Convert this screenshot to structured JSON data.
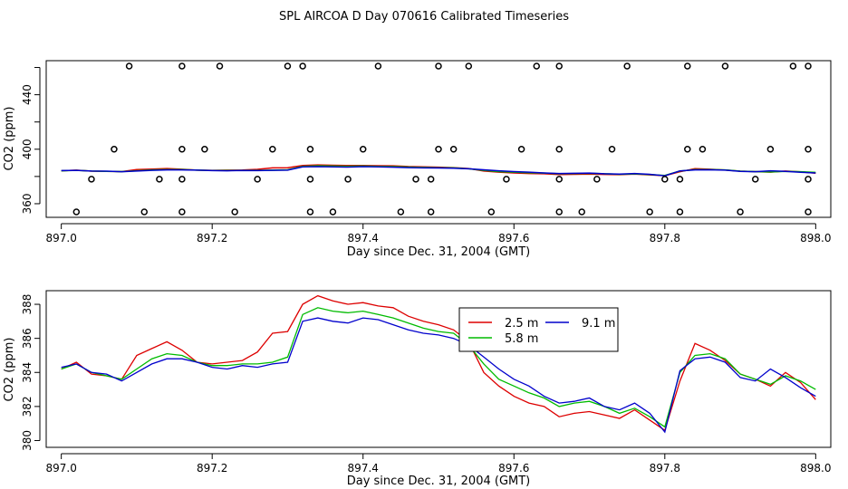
{
  "figure_title": "SPL AIRCOA D  Day 070616  Calibrated Timeseries",
  "chart_data": [
    {
      "type": "scatter",
      "panel": "top",
      "xlabel": "Day since Dec. 31, 2004 (GMT)",
      "ylabel": "CO2 (ppm)",
      "xlim": [
        896.98,
        898.02
      ],
      "ylim": [
        350,
        465
      ],
      "xticks": [
        897.0,
        897.2,
        897.4,
        897.6,
        897.8,
        898.0
      ],
      "xtick_labels": [
        "897.0",
        "897.2",
        "897.4",
        "897.6",
        "897.8",
        "898.0"
      ],
      "yticks": [
        360,
        380,
        400,
        420,
        440,
        460
      ],
      "ytick_labels": [
        "360",
        "",
        "400",
        "",
        "440",
        ""
      ],
      "points": {
        "x": [
          897.09,
          897.16,
          897.21,
          897.3,
          897.32,
          897.42,
          897.5,
          897.54,
          897.63,
          897.66,
          897.75,
          897.83,
          897.88,
          897.97,
          897.99,
          897.07,
          897.16,
          897.19,
          897.28,
          897.33,
          897.4,
          897.5,
          897.52,
          897.61,
          897.66,
          897.73,
          897.83,
          897.85,
          897.94,
          897.99,
          897.04,
          897.13,
          897.16,
          897.26,
          897.33,
          897.38,
          897.47,
          897.49,
          897.59,
          897.66,
          897.71,
          897.8,
          897.82,
          897.92,
          897.99,
          897.02,
          897.11,
          897.16,
          897.23,
          897.33,
          897.36,
          897.45,
          897.49,
          897.57,
          897.66,
          897.69,
          897.78,
          897.82,
          897.9,
          897.99
        ],
        "y": [
          461,
          461,
          461,
          461,
          461,
          461,
          461,
          461,
          461,
          461,
          461,
          461,
          461,
          461,
          461,
          400,
          400,
          400,
          400,
          400,
          400,
          400,
          400,
          400,
          400,
          400,
          400,
          400,
          400,
          400,
          378,
          378,
          378,
          378,
          378,
          378,
          378,
          378,
          378,
          378,
          378,
          378,
          378,
          378,
          378,
          354,
          354,
          354,
          354,
          354,
          354,
          354,
          354,
          354,
          354,
          354,
          354,
          354,
          354,
          354
        ]
      },
      "series": [
        {
          "name": "2.5 m",
          "color": "#dd0000"
        },
        {
          "name": "5.8 m",
          "color": "#00bb00"
        },
        {
          "name": "9.1 m",
          "color": "#0000cc"
        }
      ]
    },
    {
      "type": "line",
      "panel": "bottom",
      "xlabel": "Day since Dec. 31, 2004 (GMT)",
      "ylabel": "CO2 (ppm)",
      "xlim": [
        896.98,
        898.02
      ],
      "ylim": [
        379.6,
        388.8
      ],
      "xticks": [
        897.0,
        897.2,
        897.4,
        897.6,
        897.8,
        898.0
      ],
      "xtick_labels": [
        "897.0",
        "897.2",
        "897.4",
        "897.6",
        "897.8",
        "898.0"
      ],
      "yticks": [
        380,
        382,
        384,
        386,
        388
      ],
      "ytick_labels": [
        "380",
        "382",
        "384",
        "386",
        "388"
      ],
      "legend_position": "upper-center",
      "x": [
        897.0,
        897.02,
        897.04,
        897.06,
        897.08,
        897.1,
        897.12,
        897.14,
        897.16,
        897.18,
        897.2,
        897.22,
        897.24,
        897.26,
        897.28,
        897.3,
        897.32,
        897.34,
        897.36,
        897.38,
        897.4,
        897.42,
        897.44,
        897.46,
        897.48,
        897.5,
        897.52,
        897.54,
        897.56,
        897.58,
        897.6,
        897.62,
        897.64,
        897.66,
        897.68,
        897.7,
        897.72,
        897.74,
        897.76,
        897.78,
        897.8,
        897.82,
        897.84,
        897.86,
        897.88,
        897.9,
        897.92,
        897.94,
        897.96,
        897.98,
        898.0
      ],
      "series": [
        {
          "name": "2.5 m",
          "color": "#dd0000",
          "values": [
            384.2,
            384.6,
            383.9,
            383.8,
            383.6,
            385.0,
            385.4,
            385.8,
            385.3,
            384.6,
            384.5,
            384.6,
            384.7,
            385.2,
            386.3,
            386.4,
            388.0,
            388.5,
            388.2,
            388.0,
            388.1,
            387.9,
            387.8,
            387.3,
            387.0,
            386.8,
            386.5,
            385.8,
            384.0,
            383.2,
            382.6,
            382.2,
            382.0,
            381.4,
            381.6,
            381.7,
            381.5,
            381.3,
            381.8,
            381.2,
            380.6,
            383.5,
            385.7,
            385.3,
            384.7,
            383.9,
            383.6,
            383.2,
            384.0,
            383.4,
            382.4
          ]
        },
        {
          "name": "5.8 m",
          "color": "#00bb00",
          "values": [
            384.2,
            384.5,
            384.0,
            383.8,
            383.6,
            384.2,
            384.8,
            385.1,
            385.0,
            384.6,
            384.4,
            384.4,
            384.5,
            384.5,
            384.6,
            384.9,
            387.4,
            387.8,
            387.6,
            387.5,
            387.6,
            387.4,
            387.2,
            386.9,
            386.6,
            386.4,
            386.3,
            385.6,
            384.5,
            383.6,
            383.2,
            382.8,
            382.5,
            382.0,
            382.2,
            382.3,
            382.0,
            381.6,
            381.9,
            381.4,
            380.8,
            384.0,
            385.0,
            385.1,
            384.8,
            383.9,
            383.6,
            383.3,
            383.8,
            383.5,
            383.0
          ]
        },
        {
          "name": "9.1 m",
          "color": "#0000cc",
          "values": [
            384.3,
            384.5,
            384.0,
            383.9,
            383.5,
            384.0,
            384.5,
            384.8,
            384.8,
            384.6,
            384.3,
            384.2,
            384.4,
            384.3,
            384.5,
            384.6,
            387.0,
            387.2,
            387.0,
            386.9,
            387.2,
            387.1,
            386.8,
            386.5,
            386.3,
            386.2,
            386.0,
            385.6,
            384.9,
            384.2,
            383.6,
            383.2,
            382.6,
            382.2,
            382.3,
            382.5,
            382.0,
            381.8,
            382.2,
            381.6,
            380.5,
            384.1,
            384.8,
            384.9,
            384.6,
            383.7,
            383.5,
            384.2,
            383.7,
            383.1,
            382.6
          ]
        }
      ]
    }
  ]
}
